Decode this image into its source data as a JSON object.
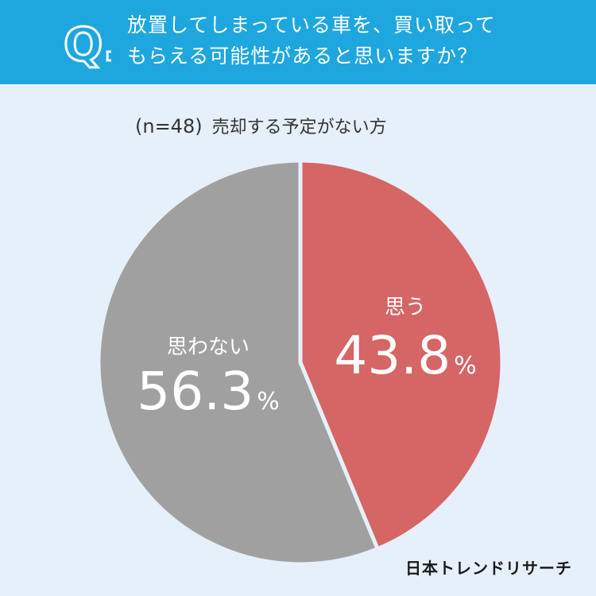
{
  "header": {
    "q_letter": "Q.",
    "question_line1": "放置してしまっている車を、買い取って",
    "question_line2": "もらえる可能性があると思いますか？"
  },
  "sample": {
    "n_label": "(n=48)",
    "group": "売却する予定がない方"
  },
  "chart_data": {
    "type": "pie",
    "slices": [
      {
        "label": "思う",
        "value": 43.8,
        "value_text": "43.8",
        "unit": "%",
        "color": "#d66566"
      },
      {
        "label": "思わない",
        "value": 56.3,
        "value_text": "56.3",
        "unit": "%",
        "color": "#a0a0a0"
      }
    ]
  },
  "brand": {
    "name": "日本トレンドリサーチ"
  },
  "colors": {
    "header": "#1ea6df",
    "background": "#e6f0fa"
  }
}
